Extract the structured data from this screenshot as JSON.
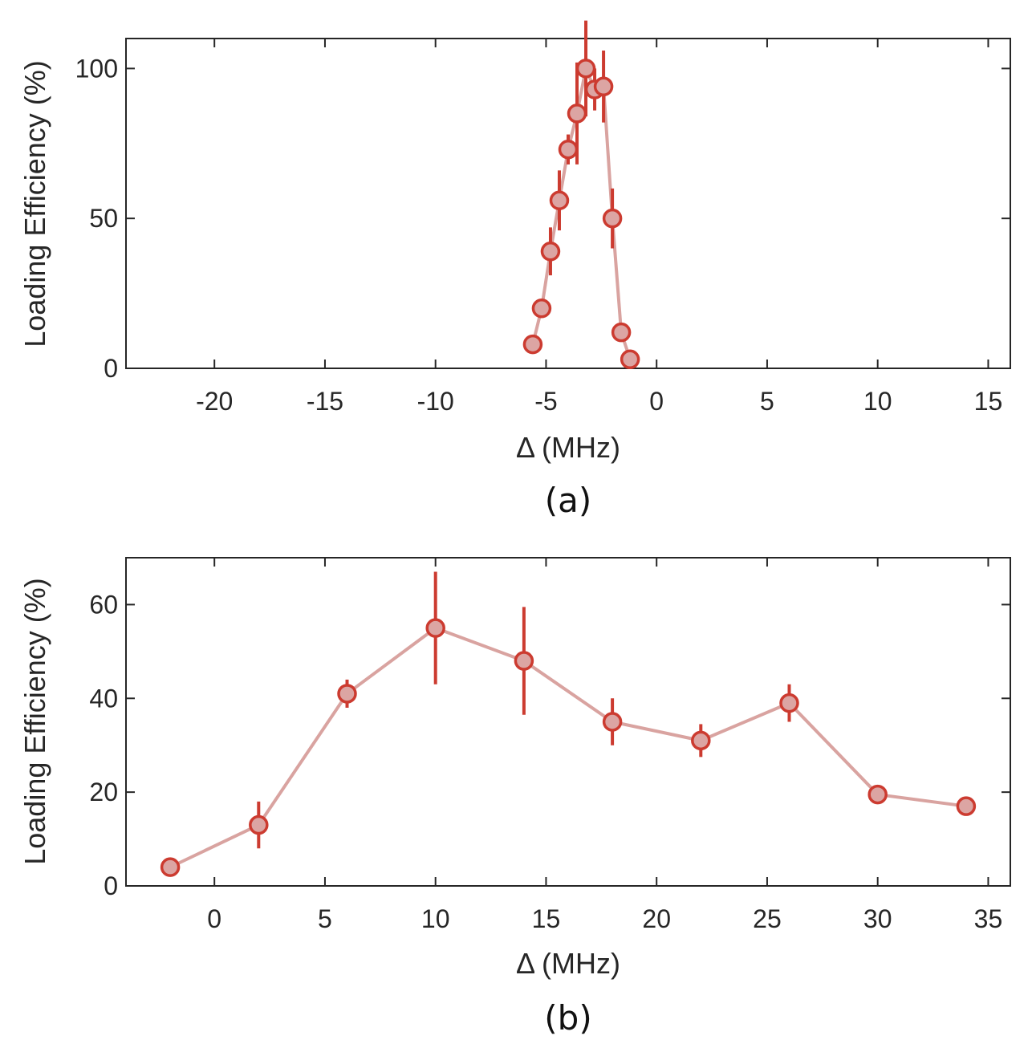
{
  "chart_data": [
    {
      "type": "scatter",
      "panel_label": "(a)",
      "title": "",
      "xlabel": "Δ (MHz)",
      "ylabel": "Loading Efficiency (%)",
      "xlim": [
        -24,
        16
      ],
      "ylim": [
        0,
        110
      ],
      "xticks": [
        -20,
        -15,
        -10,
        -5,
        0,
        5,
        10,
        15
      ],
      "xtick_labels": [
        "-20",
        "-15",
        "-10",
        "-5",
        "0",
        "5",
        "10",
        "15"
      ],
      "yticks": [
        0,
        50,
        100
      ],
      "ytick_labels": [
        "0",
        "50",
        "100"
      ],
      "grid": false,
      "series": [
        {
          "name": "Loading efficiency",
          "x": [
            -5.6,
            -5.2,
            -4.8,
            -4.4,
            -4.0,
            -3.6,
            -3.2,
            -2.8,
            -2.4,
            -2.0,
            -1.6,
            -1.2
          ],
          "y": [
            8,
            20,
            39,
            56,
            73,
            85,
            100,
            93,
            94,
            50,
            12,
            3
          ],
          "yerr": [
            0,
            2,
            8,
            10,
            5,
            17,
            16,
            7,
            12,
            10,
            0,
            0
          ]
        }
      ]
    },
    {
      "type": "scatter",
      "panel_label": "(b)",
      "title": "",
      "xlabel": "Δ (MHz)",
      "ylabel": "Loading Efficiency (%)",
      "xlim": [
        -4,
        36
      ],
      "ylim": [
        0,
        70
      ],
      "xticks": [
        0,
        5,
        10,
        15,
        20,
        25,
        30,
        35
      ],
      "xtick_labels": [
        "0",
        "5",
        "10",
        "15",
        "20",
        "25",
        "30",
        "35"
      ],
      "yticks": [
        0,
        20,
        40,
        60
      ],
      "ytick_labels": [
        "0",
        "20",
        "40",
        "60"
      ],
      "grid": false,
      "series": [
        {
          "name": "Loading efficiency",
          "x": [
            -2,
            2,
            6,
            10,
            14,
            18,
            22,
            26,
            30,
            34
          ],
          "y": [
            4,
            13,
            41,
            55,
            48,
            35,
            31,
            39,
            19.5,
            17
          ],
          "yerr": [
            0,
            5,
            3,
            12,
            11.5,
            5,
            3.5,
            4,
            0,
            0
          ]
        }
      ]
    }
  ],
  "colors": {
    "line": "#d9a3a0",
    "marker_face": "#dca5a3",
    "marker_edge": "#cc3b30",
    "errorbar": "#cc3b30",
    "axes": "#262626"
  }
}
